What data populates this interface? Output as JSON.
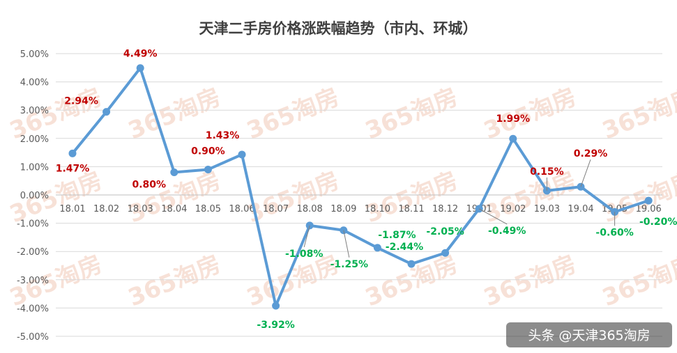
{
  "chart_data": {
    "type": "line",
    "title": "天津二手房价格涨跌幅趋势（市内、环城）",
    "xlabel": "",
    "ylabel": "",
    "ylim": [
      -5.0,
      5.0
    ],
    "y_ticks": [
      "5.00%",
      "4.00%",
      "3.00%",
      "2.00%",
      "1.00%",
      "0.00%",
      "-1.00%",
      "-2.00%",
      "-3.00%",
      "-4.00%",
      "-5.00%"
    ],
    "y_tick_values": [
      5,
      4,
      3,
      2,
      1,
      0,
      -1,
      -2,
      -3,
      -4,
      -5
    ],
    "categories": [
      "18.01",
      "18.02",
      "18.03",
      "18.04",
      "18.05",
      "18.06",
      "18.07",
      "18.08",
      "18.09",
      "18.10",
      "18.11",
      "18.12",
      "19.01",
      "19.02",
      "19.03",
      "19.04",
      "19.05",
      "19.06"
    ],
    "values": [
      1.47,
      2.94,
      4.49,
      0.8,
      0.9,
      1.43,
      -3.92,
      -1.08,
      -1.25,
      -1.87,
      -2.44,
      -2.05,
      -0.49,
      1.99,
      0.15,
      0.29,
      -0.6,
      -0.2
    ],
    "data_labels": [
      "1.47%",
      "2.94%",
      "4.49%",
      "0.80%",
      "0.90%",
      "1.43%",
      "-3.92%",
      "-1.08%",
      "-1.25%",
      "-1.87%",
      "-2.44%",
      "-2.05%",
      "-0.49%",
      "1.99%",
      "0.15%",
      "0.29%",
      "-0.60%",
      "-0.20%"
    ],
    "grid": true,
    "legend": "none",
    "line_color": "#5b9bd5",
    "positive_label_color": "#c00000",
    "negative_label_color": "#00b050"
  },
  "watermark": "365淘房",
  "credit": "头条 @天津365淘房"
}
